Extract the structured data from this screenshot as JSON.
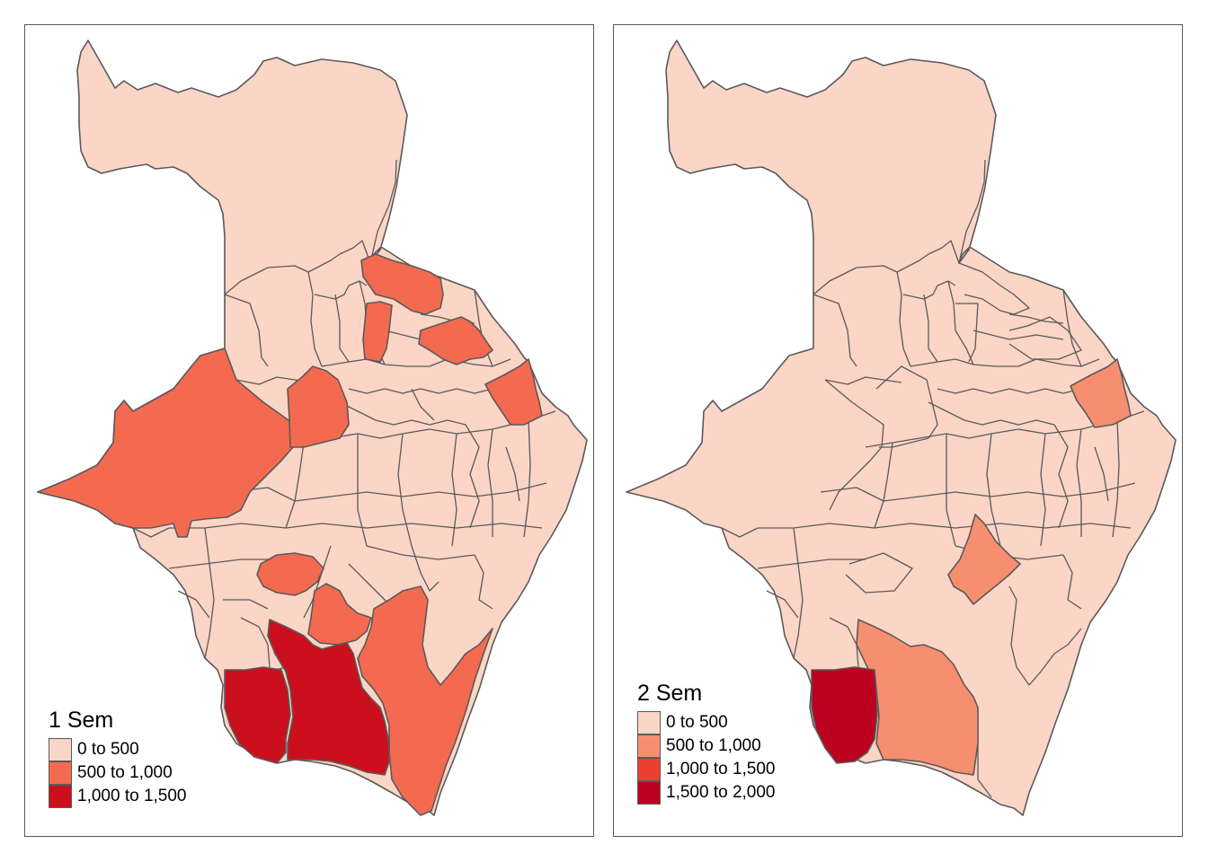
{
  "stroke_color": "#5a5a5a",
  "panels": [
    {
      "legend": {
        "title": "1 Sem",
        "items": [
          {
            "label": "0 to 500",
            "color": "#fbd5c6"
          },
          {
            "label": "500 to 1,000",
            "color": "#f46a50"
          },
          {
            "label": "1,000 to 1,500",
            "color": "#cc0f1c"
          }
        ]
      }
    },
    {
      "legend": {
        "title": "2 Sem",
        "items": [
          {
            "label": "0 to 500",
            "color": "#fbd5c6"
          },
          {
            "label": "500 to 1,000",
            "color": "#f78e6f"
          },
          {
            "label": "1,000 to 1,500",
            "color": "#ee3f32"
          },
          {
            "label": "1,500 to 2,000",
            "color": "#bd0020"
          }
        ]
      }
    }
  ]
}
